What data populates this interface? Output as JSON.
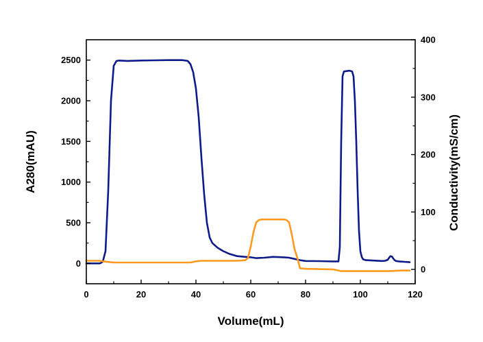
{
  "chart_data": {
    "type": "line",
    "title": "",
    "xlabel": "Volume(mL)",
    "ylabel_left": "A280(mAU)",
    "ylabel_right": "Conductivity(mS/cm)",
    "xlim": [
      0,
      120
    ],
    "ylim_left": [
      -250,
      2750
    ],
    "ylim_right": [
      -25,
      400
    ],
    "x_ticks": [
      0,
      20,
      40,
      60,
      80,
      100,
      120
    ],
    "y_left_ticks": [
      0,
      500,
      1000,
      1500,
      2000,
      2500
    ],
    "y_right_ticks": [
      0,
      100,
      200,
      300,
      400
    ],
    "grid": false,
    "legend": "none",
    "series": [
      {
        "axis": "left",
        "color": "#0d1a8a",
        "x": [
          0,
          5,
          6,
          7,
          8,
          9,
          10,
          11,
          12,
          15,
          20,
          25,
          30,
          35,
          37,
          38,
          39,
          40,
          41,
          42,
          43,
          44,
          45,
          46,
          48,
          50,
          52,
          55,
          58,
          60,
          62,
          65,
          68,
          70,
          72,
          74,
          76,
          78,
          80,
          85,
          90,
          92,
          92.5,
          93,
          93.5,
          94,
          96,
          97,
          97.5,
          98,
          98.5,
          99,
          99.5,
          100,
          100.5,
          101,
          102,
          105,
          108,
          109,
          110,
          110.5,
          111,
          111.5,
          112,
          112.5,
          113,
          114,
          116,
          118
        ],
        "y": [
          0,
          0,
          20,
          150,
          900,
          2000,
          2430,
          2490,
          2495,
          2490,
          2495,
          2497,
          2500,
          2500,
          2490,
          2450,
          2350,
          2150,
          1800,
          1300,
          850,
          500,
          320,
          250,
          190,
          150,
          120,
          90,
          80,
          75,
          65,
          70,
          80,
          78,
          75,
          70,
          55,
          40,
          30,
          28,
          25,
          25,
          200,
          1500,
          2300,
          2360,
          2370,
          2360,
          2300,
          2000,
          1500,
          900,
          400,
          150,
          80,
          50,
          40,
          35,
          30,
          32,
          45,
          70,
          90,
          85,
          60,
          40,
          30,
          25,
          20,
          15
        ]
      },
      {
        "axis": "right",
        "color": "#ff9a1f",
        "x": [
          0,
          5,
          6,
          8,
          10,
          20,
          30,
          38,
          40,
          42,
          50,
          55,
          58,
          59,
          60,
          61,
          62,
          63,
          64,
          65,
          70,
          72,
          73,
          74,
          75,
          76,
          77,
          78,
          80,
          90,
          92,
          93,
          94,
          100,
          110,
          115,
          118
        ],
        "y": [
          15,
          15,
          14,
          13,
          12,
          12,
          12,
          12,
          14,
          15,
          15,
          15,
          16,
          20,
          40,
          65,
          82,
          86,
          87,
          87,
          87,
          87,
          86,
          82,
          60,
          35,
          20,
          2,
          1,
          0,
          -2,
          -3,
          -3,
          -3,
          -3,
          -2,
          -2
        ]
      }
    ]
  }
}
